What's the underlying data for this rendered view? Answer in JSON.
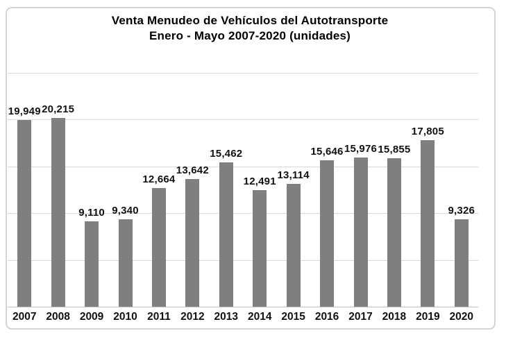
{
  "title": {
    "line1": "Venta Menudeo de Vehículos del Autotransporte",
    "line2": "Enero - Mayo 2007-2020 (unidades)"
  },
  "chart_data": {
    "type": "bar",
    "title": "Venta Menudeo de Vehículos del Autotransporte Enero - Mayo 2007-2020 (unidades)",
    "categories": [
      "2007",
      "2008",
      "2009",
      "2010",
      "2011",
      "2012",
      "2013",
      "2014",
      "2015",
      "2016",
      "2017",
      "2018",
      "2019",
      "2020"
    ],
    "values": [
      19949,
      20215,
      9110,
      9340,
      12664,
      13642,
      15462,
      12491,
      13114,
      15646,
      15976,
      15855,
      17805,
      9326
    ],
    "data_labels": [
      "19,949",
      "20,215",
      "9,110",
      "9,340",
      "12,664",
      "13,642",
      "15,462",
      "12,491",
      "13,114",
      "15,646",
      "15,976",
      "15,855",
      "17,805",
      "9,326"
    ],
    "xlabel": "",
    "ylabel": "",
    "ylim": [
      0,
      25000
    ],
    "gridline_step": 5000,
    "grid": true,
    "legend_position": "none",
    "bar_color": "#7f7f7f",
    "gridline_color": "#d9d9d9",
    "axis_line_color": "#c0c0c0",
    "label_color": "#111111"
  }
}
